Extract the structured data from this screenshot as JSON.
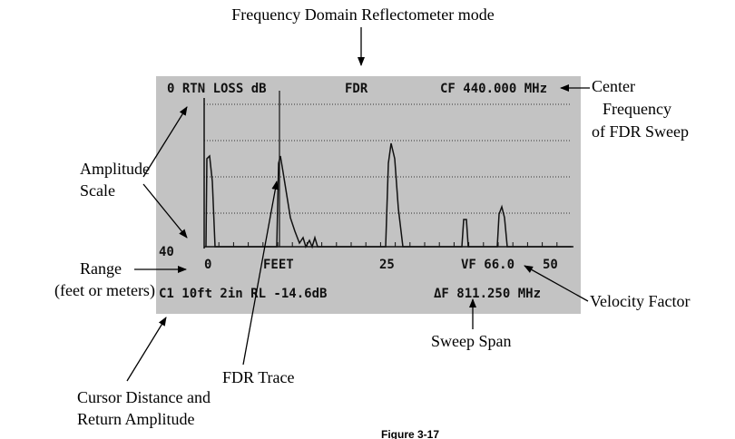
{
  "title": "Frequency Domain Reflectometer mode",
  "screen": {
    "header": [
      "0 RTN LOSS dB",
      "FDR",
      "CF 440.000 MHz"
    ],
    "y_scale_bottom": "40",
    "x_labels": [
      "0",
      "FEET",
      "25",
      "VF 66.0",
      "50"
    ],
    "footer": [
      "C1 10ft 2in RL -14.6dB",
      "ΔF 811.250 MHz"
    ]
  },
  "annotations": {
    "center_frequency": [
      "Center",
      "Frequency",
      "of FDR Sweep"
    ],
    "amplitude_scale": [
      "Amplitude",
      "Scale"
    ],
    "range": [
      "Range",
      "(feet or meters)"
    ],
    "velocity_factor": "Velocity Factor",
    "fdr_trace": "FDR Trace",
    "sweep_span": "Sweep Span",
    "cursor": [
      "Cursor Distance and",
      "Return Amplitude"
    ]
  },
  "figure_label": "Figure 3-17"
}
